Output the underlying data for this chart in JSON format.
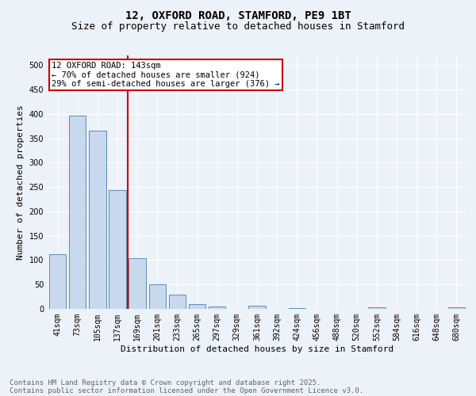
{
  "title1": "12, OXFORD ROAD, STAMFORD, PE9 1BT",
  "title2": "Size of property relative to detached houses in Stamford",
  "xlabel": "Distribution of detached houses by size in Stamford",
  "ylabel": "Number of detached properties",
  "categories": [
    "41sqm",
    "73sqm",
    "105sqm",
    "137sqm",
    "169sqm",
    "201sqm",
    "233sqm",
    "265sqm",
    "297sqm",
    "329sqm",
    "361sqm",
    "392sqm",
    "424sqm",
    "456sqm",
    "488sqm",
    "520sqm",
    "552sqm",
    "584sqm",
    "616sqm",
    "648sqm",
    "680sqm"
  ],
  "values": [
    112,
    397,
    365,
    243,
    104,
    50,
    30,
    10,
    5,
    0,
    7,
    0,
    2,
    0,
    0,
    0,
    4,
    0,
    0,
    0,
    3
  ],
  "bar_color": "#c8d9ee",
  "bar_edge_color": "#5b8db8",
  "vline_x_idx": 3,
  "vline_color": "#cc0000",
  "annotation_text": "12 OXFORD ROAD: 143sqm\n← 70% of detached houses are smaller (924)\n29% of semi-detached houses are larger (376) →",
  "annotation_box_color": "#ffffff",
  "annotation_box_edge": "#cc0000",
  "ylim": [
    0,
    520
  ],
  "yticks": [
    0,
    50,
    100,
    150,
    200,
    250,
    300,
    350,
    400,
    450,
    500
  ],
  "bg_color": "#edf1f8",
  "grid_color": "#ffffff",
  "footer1": "Contains HM Land Registry data © Crown copyright and database right 2025.",
  "footer2": "Contains public sector information licensed under the Open Government Licence v3.0.",
  "title_fontsize": 10,
  "subtitle_fontsize": 9,
  "axis_label_fontsize": 8,
  "tick_fontsize": 7,
  "annotation_fontsize": 7.5,
  "footer_fontsize": 6.5
}
